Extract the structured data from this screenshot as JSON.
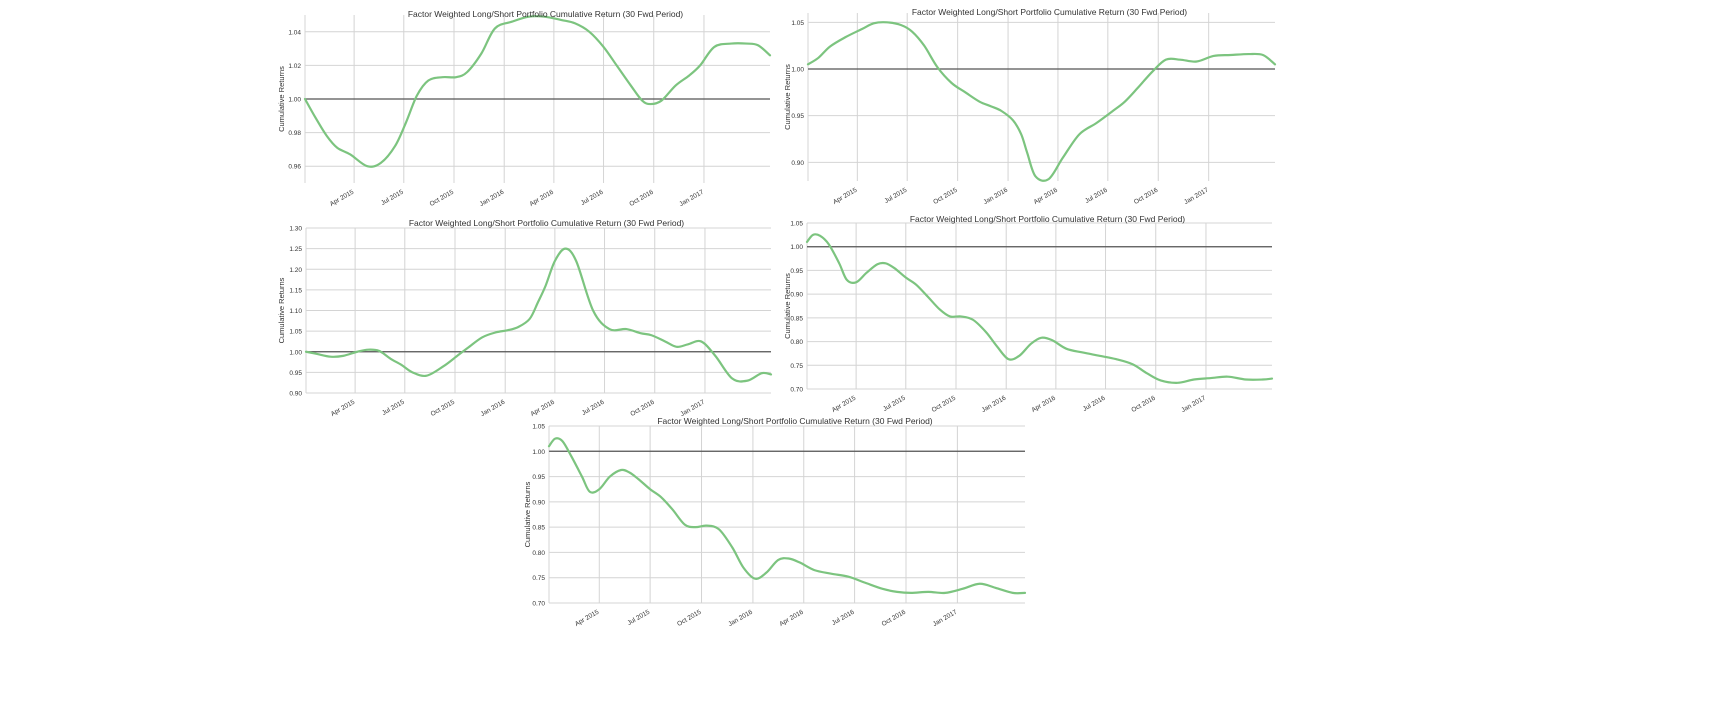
{
  "colors": {
    "series": "#7cc47f",
    "reference_line": "#555555",
    "grid": "#d4d4d4"
  },
  "chart_data": [
    {
      "type": "line",
      "title": "Factor Weighted Long/Short Portfolio Cumulative Return (30 Fwd Period)",
      "ylabel": "Cumulative Returns",
      "xlabel": "",
      "grid": true,
      "xlim": [
        "2015-01-01",
        "2017-05-02"
      ],
      "ylim": [
        0.95,
        1.05
      ],
      "xticks": [
        "2015-04-01",
        "2015-07-01",
        "2015-10-01",
        "2016-01-01",
        "2016-04-01",
        "2016-07-01",
        "2016-10-01",
        "2017-01-01"
      ],
      "xtick_labels": [
        "Apr 2015",
        "Jul 2015",
        "Oct 2015",
        "Jan 2016",
        "Apr 2016",
        "Jul 2016",
        "Oct 2016",
        "Jan 2017"
      ],
      "yticks": [
        0.96,
        0.98,
        1.0,
        1.02,
        1.04
      ],
      "ytick_labels": [
        "0.96",
        "0.98",
        "1.00",
        "1.02",
        "1.04"
      ],
      "reference_y": 1.0,
      "series": [
        {
          "x": [
            "2015-01-01",
            "2015-01-20",
            "2015-02-10",
            "2015-03-01",
            "2015-03-25",
            "2015-04-25",
            "2015-05-20",
            "2015-06-15",
            "2015-07-05",
            "2015-07-25",
            "2015-08-15",
            "2015-09-10",
            "2015-10-05",
            "2015-10-25",
            "2015-11-20",
            "2015-12-15",
            "2016-01-15",
            "2016-02-15",
            "2016-03-15",
            "2016-04-15",
            "2016-05-10",
            "2016-06-05",
            "2016-07-01",
            "2016-07-25",
            "2016-08-20",
            "2016-09-10",
            "2016-09-25",
            "2016-10-15",
            "2016-11-10",
            "2016-12-05",
            "2016-12-25",
            "2017-01-20",
            "2017-02-20",
            "2017-03-20",
            "2017-04-10",
            "2017-05-02"
          ],
          "y": [
            1.0,
            0.989,
            0.978,
            0.971,
            0.967,
            0.96,
            0.962,
            0.972,
            0.986,
            1.002,
            1.011,
            1.013,
            1.013,
            1.016,
            1.027,
            1.042,
            1.046,
            1.049,
            1.049,
            1.047,
            1.045,
            1.04,
            1.031,
            1.02,
            1.008,
            0.999,
            0.997,
            0.999,
            1.008,
            1.014,
            1.02,
            1.031,
            1.033,
            1.033,
            1.032,
            1.026
          ]
        }
      ]
    },
    {
      "type": "line",
      "title": "Factor Weighted Long/Short Portfolio Cumulative Return (30 Fwd Period)",
      "ylabel": "Cumulative Returns",
      "xlabel": "",
      "grid": true,
      "xlim": [
        "2015-01-01",
        "2017-05-02"
      ],
      "ylim": [
        0.88,
        1.06
      ],
      "xticks": [
        "2015-04-01",
        "2015-07-01",
        "2015-10-01",
        "2016-01-01",
        "2016-04-01",
        "2016-07-01",
        "2016-10-01",
        "2017-01-01"
      ],
      "xtick_labels": [
        "Apr 2015",
        "Jul 2015",
        "Oct 2015",
        "Jan 2016",
        "Apr 2016",
        "Jul 2016",
        "Oct 2016",
        "Jan 2017"
      ],
      "yticks": [
        0.9,
        0.95,
        1.0,
        1.05
      ],
      "ytick_labels": [
        "0.90",
        "0.95",
        "1.00",
        "1.05"
      ],
      "reference_y": 1.0,
      "series": [
        {
          "x": [
            "2015-01-01",
            "2015-01-20",
            "2015-02-10",
            "2015-03-10",
            "2015-04-10",
            "2015-05-01",
            "2015-05-25",
            "2015-06-20",
            "2015-07-10",
            "2015-08-01",
            "2015-08-25",
            "2015-09-20",
            "2015-10-15",
            "2015-11-10",
            "2015-12-01",
            "2015-12-20",
            "2016-01-10",
            "2016-01-25",
            "2016-02-05",
            "2016-02-20",
            "2016-03-15",
            "2016-04-10",
            "2016-05-10",
            "2016-06-10",
            "2016-07-10",
            "2016-08-01",
            "2016-08-25",
            "2016-09-20",
            "2016-10-15",
            "2016-11-10",
            "2016-12-10",
            "2017-01-10",
            "2017-02-10",
            "2017-03-15",
            "2017-04-10",
            "2017-05-02"
          ],
          "y": [
            1.005,
            1.012,
            1.024,
            1.034,
            1.043,
            1.049,
            1.05,
            1.047,
            1.04,
            1.025,
            1.002,
            0.985,
            0.975,
            0.965,
            0.96,
            0.955,
            0.945,
            0.93,
            0.91,
            0.885,
            0.882,
            0.905,
            0.93,
            0.942,
            0.955,
            0.965,
            0.98,
            0.997,
            1.01,
            1.01,
            1.008,
            1.014,
            1.015,
            1.016,
            1.015,
            1.005
          ]
        }
      ]
    },
    {
      "type": "line",
      "title": "Factor Weighted Long/Short Portfolio Cumulative Return (30 Fwd Period)",
      "ylabel": "Cumulative Returns",
      "xlabel": "",
      "grid": true,
      "xlim": [
        "2015-01-01",
        "2017-05-02"
      ],
      "ylim": [
        0.9,
        1.3
      ],
      "xticks": [
        "2015-04-01",
        "2015-07-01",
        "2015-10-01",
        "2016-01-01",
        "2016-04-01",
        "2016-07-01",
        "2016-10-01",
        "2017-01-01"
      ],
      "xtick_labels": [
        "Apr 2015",
        "Jul 2015",
        "Oct 2015",
        "Jan 2016",
        "Apr 2016",
        "Jul 2016",
        "Oct 2016",
        "Jan 2017"
      ],
      "yticks": [
        0.9,
        0.95,
        1.0,
        1.05,
        1.1,
        1.15,
        1.2,
        1.25,
        1.3
      ],
      "ytick_labels": [
        "0.90",
        "0.95",
        "1.00",
        "1.05",
        "1.10",
        "1.15",
        "1.20",
        "1.25",
        "1.30"
      ],
      "reference_y": 1.0,
      "series": [
        {
          "x": [
            "2015-01-01",
            "2015-01-20",
            "2015-02-15",
            "2015-03-10",
            "2015-04-05",
            "2015-04-25",
            "2015-05-15",
            "2015-06-05",
            "2015-06-25",
            "2015-07-15",
            "2015-08-10",
            "2015-09-10",
            "2015-10-05",
            "2015-10-25",
            "2015-11-20",
            "2015-12-15",
            "2016-01-05",
            "2016-01-25",
            "2016-02-15",
            "2016-03-01",
            "2016-03-15",
            "2016-04-01",
            "2016-04-20",
            "2016-05-10",
            "2016-06-10",
            "2016-07-10",
            "2016-08-10",
            "2016-09-05",
            "2016-09-25",
            "2016-10-20",
            "2016-11-10",
            "2016-12-01",
            "2016-12-25",
            "2017-01-20",
            "2017-02-20",
            "2017-03-20",
            "2017-04-15",
            "2017-05-02"
          ],
          "y": [
            1.0,
            0.995,
            0.988,
            0.99,
            1.0,
            1.005,
            1.002,
            0.983,
            0.968,
            0.95,
            0.942,
            0.965,
            0.99,
            1.01,
            1.035,
            1.047,
            1.052,
            1.06,
            1.08,
            1.12,
            1.16,
            1.22,
            1.25,
            1.22,
            1.1,
            1.055,
            1.055,
            1.045,
            1.04,
            1.025,
            1.012,
            1.018,
            1.025,
            0.99,
            0.935,
            0.93,
            0.948,
            0.945
          ]
        }
      ]
    },
    {
      "type": "line",
      "title": "Factor Weighted Long/Short Portfolio Cumulative Return (30 Fwd Period)",
      "ylabel": "Cumulative Returns",
      "xlabel": "",
      "grid": true,
      "xlim": [
        "2015-01-01",
        "2017-05-02"
      ],
      "ylim": [
        0.7,
        1.05
      ],
      "xticks": [
        "2015-04-01",
        "2015-07-01",
        "2015-10-01",
        "2016-01-01",
        "2016-04-01",
        "2016-07-01",
        "2016-10-01",
        "2017-01-01"
      ],
      "xtick_labels": [
        "Apr 2015",
        "Jul 2015",
        "Oct 2015",
        "Jan 2016",
        "Apr 2016",
        "Jul 2016",
        "Oct 2016",
        "Jan 2017"
      ],
      "yticks": [
        0.7,
        0.75,
        0.8,
        0.85,
        0.9,
        0.95,
        1.0,
        1.05
      ],
      "ytick_labels": [
        "0.70",
        "0.75",
        "0.80",
        "0.85",
        "0.90",
        "0.95",
        "1.00",
        "1.05"
      ],
      "reference_y": 1.0,
      "series": [
        {
          "x": [
            "2015-01-01",
            "2015-01-12",
            "2015-01-25",
            "2015-02-10",
            "2015-03-01",
            "2015-03-15",
            "2015-04-01",
            "2015-04-20",
            "2015-05-10",
            "2015-05-25",
            "2015-06-10",
            "2015-07-01",
            "2015-07-20",
            "2015-08-10",
            "2015-09-01",
            "2015-09-20",
            "2015-10-10",
            "2015-11-01",
            "2015-11-25",
            "2015-12-15",
            "2016-01-05",
            "2016-01-25",
            "2016-02-15",
            "2016-03-05",
            "2016-03-25",
            "2016-04-20",
            "2016-05-20",
            "2016-06-20",
            "2016-07-20",
            "2016-08-20",
            "2016-09-15",
            "2016-10-10",
            "2016-11-10",
            "2016-12-10",
            "2017-01-10",
            "2017-02-10",
            "2017-03-15",
            "2017-04-15",
            "2017-05-02"
          ],
          "y": [
            1.01,
            1.025,
            1.023,
            1.005,
            0.965,
            0.93,
            0.925,
            0.945,
            0.963,
            0.965,
            0.955,
            0.935,
            0.92,
            0.895,
            0.868,
            0.853,
            0.853,
            0.846,
            0.82,
            0.79,
            0.763,
            0.77,
            0.795,
            0.808,
            0.803,
            0.785,
            0.777,
            0.77,
            0.763,
            0.752,
            0.733,
            0.718,
            0.713,
            0.72,
            0.723,
            0.726,
            0.72,
            0.72,
            0.722
          ]
        }
      ]
    },
    {
      "type": "line",
      "title": "Factor Weighted Long/Short Portfolio Cumulative Return (30 Fwd Period)",
      "ylabel": "Cumulative Returns",
      "xlabel": "",
      "grid": true,
      "xlim": [
        "2015-01-01",
        "2017-05-02"
      ],
      "ylim": [
        0.7,
        1.05
      ],
      "xticks": [
        "2015-04-01",
        "2015-07-01",
        "2015-10-01",
        "2016-01-01",
        "2016-04-01",
        "2016-07-01",
        "2016-10-01",
        "2017-01-01"
      ],
      "xtick_labels": [
        "Apr 2015",
        "Jul 2015",
        "Oct 2015",
        "Jan 2016",
        "Apr 2016",
        "Jul 2016",
        "Oct 2016",
        "Jan 2017"
      ],
      "yticks": [
        0.7,
        0.75,
        0.8,
        0.85,
        0.9,
        0.95,
        1.0,
        1.05
      ],
      "ytick_labels": [
        "0.70",
        "0.75",
        "0.80",
        "0.85",
        "0.90",
        "0.95",
        "1.00",
        "1.05"
      ],
      "reference_y": 1.0,
      "series": [
        {
          "x": [
            "2015-01-01",
            "2015-01-12",
            "2015-01-25",
            "2015-02-10",
            "2015-03-01",
            "2015-03-15",
            "2015-04-01",
            "2015-04-20",
            "2015-05-10",
            "2015-05-25",
            "2015-06-10",
            "2015-07-01",
            "2015-07-20",
            "2015-08-10",
            "2015-09-01",
            "2015-09-20",
            "2015-10-10",
            "2015-11-01",
            "2015-11-25",
            "2015-12-15",
            "2016-01-05",
            "2016-01-25",
            "2016-02-15",
            "2016-03-05",
            "2016-03-25",
            "2016-04-20",
            "2016-05-20",
            "2016-06-20",
            "2016-07-20",
            "2016-08-20",
            "2016-09-15",
            "2016-10-10",
            "2016-11-10",
            "2016-12-10",
            "2017-01-10",
            "2017-02-10",
            "2017-03-10",
            "2017-04-10",
            "2017-05-02"
          ],
          "y": [
            1.01,
            1.025,
            1.02,
            0.99,
            0.95,
            0.92,
            0.925,
            0.95,
            0.963,
            0.958,
            0.945,
            0.925,
            0.91,
            0.885,
            0.855,
            0.85,
            0.853,
            0.846,
            0.81,
            0.77,
            0.748,
            0.76,
            0.785,
            0.788,
            0.78,
            0.765,
            0.758,
            0.752,
            0.74,
            0.728,
            0.722,
            0.72,
            0.722,
            0.72,
            0.728,
            0.738,
            0.73,
            0.72,
            0.72
          ]
        }
      ]
    }
  ]
}
